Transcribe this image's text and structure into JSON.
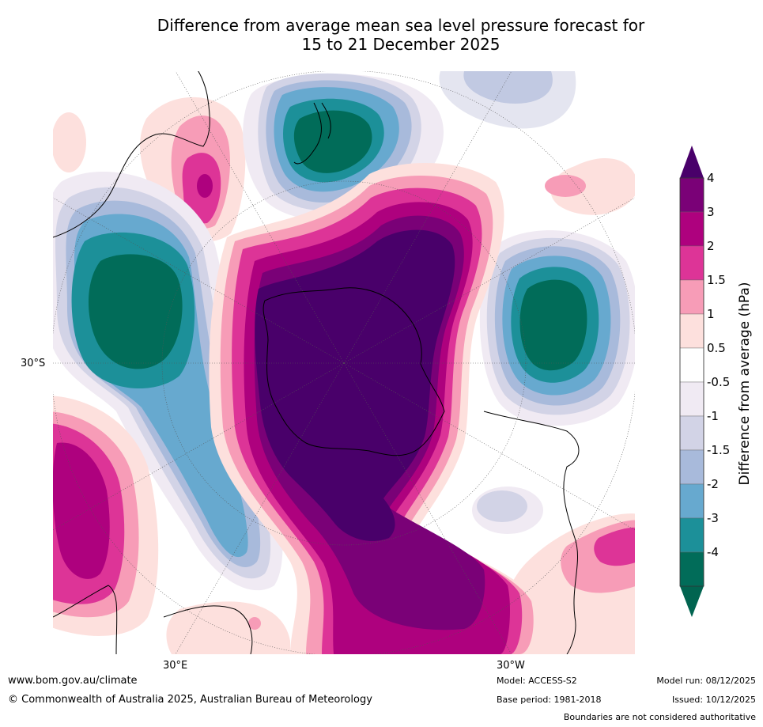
{
  "title": {
    "line1": "Difference from average mean sea level pressure forecast for",
    "line2": "15 to 21 December 2025"
  },
  "map": {
    "projection": "south polar stereographic",
    "lat_labels": [
      "30°S"
    ],
    "lon_labels": [
      "30°E",
      "30°W"
    ]
  },
  "legend": {
    "title": "Difference from average (hPa)",
    "levels": [
      "4",
      "3",
      "2",
      "1.5",
      "1",
      "0.5",
      "-0.5",
      "-1",
      "-1.5",
      "-2",
      "-3",
      "-4"
    ],
    "colors": [
      "#7a0177",
      "#ae017e",
      "#dd3497",
      "#f79cb7",
      "#fde0dd",
      "#ffffff",
      "#f0eaf3",
      "#d2d3e6",
      "#a8badb",
      "#67a9cf",
      "#1c9099",
      "#016c59"
    ],
    "over_color": "#49006a",
    "under_color": "#016450"
  },
  "footer": {
    "website": "www.bom.gov.au/climate",
    "copyright": "© Commonwealth of Australia 2025, Australian Bureau of Meteorology",
    "model": "Model: ACCESS-S2",
    "base_period": "Base period: 1981-2018",
    "model_run": "Model run: 08/12/2025",
    "issued": "Issued: 10/12/2025",
    "disclaimer": "Boundaries are not considered authoritative"
  }
}
